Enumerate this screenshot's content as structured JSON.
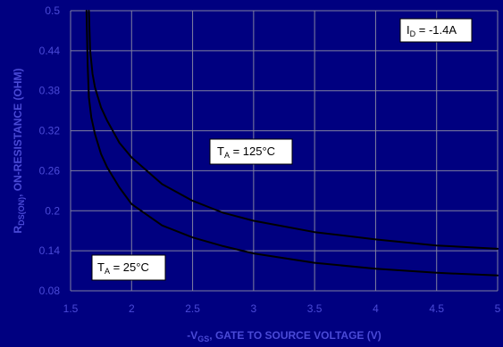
{
  "chart_data": {
    "type": "line",
    "xlim": [
      1.5,
      5
    ],
    "ylim": [
      0.08,
      0.5
    ],
    "x_ticks": [
      "1.5",
      "2",
      "2.5",
      "3",
      "3.5",
      "4",
      "4.5",
      "5"
    ],
    "y_ticks": [
      "0.5",
      "0.44",
      "0.38",
      "0.32",
      "0.26",
      "0.2",
      "0.14",
      "0.08"
    ],
    "xlabel": {
      "prefix": "-V",
      "sub": "GS",
      "rest": ", GATE TO SOURCE VOLTAGE (V)"
    },
    "ylabel": {
      "prefix": "R",
      "sub": "DS(ON)",
      "rest": ", ON-RESISTANCE (OHM)"
    },
    "grid": true,
    "colors": {
      "background": "#000080",
      "grid": "#8080a0",
      "line": "#000000",
      "text": "#4a4ad6",
      "callout_bg": "#ffffff"
    },
    "series": [
      {
        "x": [
          1.65,
          1.66,
          1.68,
          1.7,
          1.75,
          1.8,
          1.9,
          2.0,
          2.25,
          2.5,
          2.75,
          3.0,
          3.5,
          4.0,
          4.5,
          5.0
        ],
        "y": [
          0.5,
          0.44,
          0.405,
          0.385,
          0.355,
          0.335,
          0.302,
          0.28,
          0.24,
          0.215,
          0.197,
          0.185,
          0.168,
          0.157,
          0.148,
          0.143
        ]
      },
      {
        "x": [
          1.63,
          1.64,
          1.65,
          1.67,
          1.7,
          1.75,
          1.8,
          1.9,
          2.0,
          2.25,
          2.5,
          2.75,
          3.0,
          3.5,
          4.0,
          4.5,
          5.0
        ],
        "y": [
          0.5,
          0.42,
          0.37,
          0.34,
          0.315,
          0.285,
          0.265,
          0.235,
          0.21,
          0.178,
          0.16,
          0.147,
          0.136,
          0.122,
          0.113,
          0.107,
          0.103
        ]
      }
    ]
  },
  "annotations": {
    "id_label": {
      "prefix": "I",
      "sub": "D",
      "rest": " = -1.4A"
    },
    "ta125_label": {
      "prefix": "T",
      "sub": "A",
      "rest": " = 125°C"
    },
    "ta25_label": {
      "prefix": "T",
      "sub": "A",
      "rest": " = 25°C"
    }
  }
}
